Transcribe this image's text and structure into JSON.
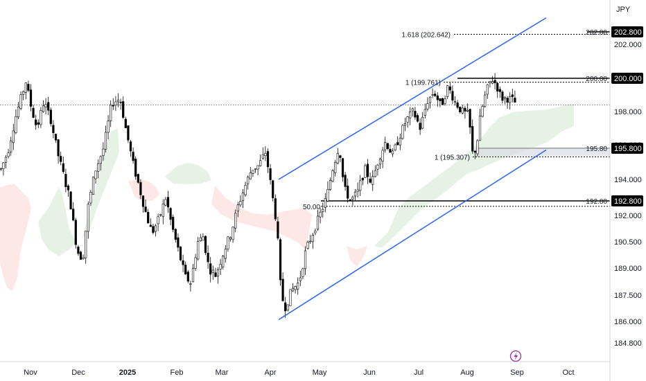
{
  "currency": "JPY",
  "colors": {
    "up": "#ffffff",
    "down": "#000000",
    "wick": "#000000",
    "channel": "#2962ff",
    "cloud_bull": "#e6f2e6",
    "cloud_bear": "#fde7e7",
    "badge_bg": "#000000",
    "zone_fill": "#d8dde2"
  },
  "chart_data": {
    "type": "candlestick",
    "x_labels": [
      "Nov",
      "Dec",
      "2025",
      "Feb",
      "Mar",
      "Apr",
      "May",
      "Jun",
      "Jul",
      "Aug",
      "Sep",
      "Oct"
    ],
    "y_ticks": [
      "202.000",
      "200.000",
      "198.000",
      "196.000",
      "194.000",
      "192.000",
      "190.500",
      "189.000",
      "187.500",
      "186.000",
      "184.800"
    ],
    "y_badges": [
      "202.800",
      "200.000",
      "195.800",
      "192.800"
    ],
    "level_labels": [
      "202.80",
      "200.00",
      "195.80",
      "192.80"
    ],
    "fib_labels": [
      "1.618 (202.642)",
      "1 (199.761)",
      "1 (195.307)",
      "50.00"
    ],
    "levels": [
      202.8,
      200.0,
      195.8,
      192.8
    ],
    "fib_levels": [
      202.642,
      199.761,
      195.307,
      192.5
    ],
    "current_price": 198.4,
    "channel": {
      "upper": {
        "from": [
          "Apr",
          194.0
        ],
        "to": [
          "Sep+",
          203.7
        ]
      },
      "lower": {
        "from": [
          "Apr",
          186.1
        ],
        "to": [
          "Sep+",
          195.7
        ]
      }
    },
    "ylim": [
      184.3,
      203.9
    ]
  }
}
